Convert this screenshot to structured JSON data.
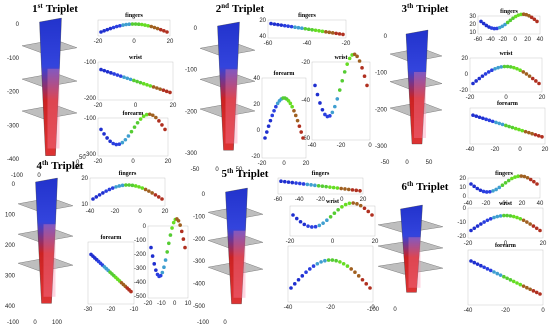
{
  "panels": [
    {
      "title": {
        "number": "1",
        "suffix": "st",
        "word": "Triplet"
      },
      "arm": {
        "yticks": [
          "0",
          "-100",
          "-200",
          "-300",
          "-400"
        ],
        "xticks": [
          "-100",
          "0"
        ],
        "zticks": [
          "50",
          "0",
          "-50"
        ]
      },
      "plots": [
        {
          "label": "fingers",
          "xticks": [
            "-20",
            "0",
            "20"
          ],
          "yticks": []
        },
        {
          "label": "wrist",
          "xticks": [
            "-20",
            "0",
            "20"
          ],
          "yticks": [
            "-100",
            "-200"
          ]
        },
        {
          "label": "forearm",
          "xticks": [
            "-20",
            "0",
            "20"
          ],
          "yticks": [
            "-100",
            "-300"
          ]
        }
      ]
    },
    {
      "title": {
        "number": "2",
        "suffix": "nd",
        "word": "Triplet"
      },
      "arm": {
        "yticks": [
          "0",
          "-100",
          "-200",
          "-300"
        ],
        "xticks": [
          "-50",
          "0",
          "50"
        ],
        "zticks": []
      },
      "plots": [
        {
          "label": "fingers",
          "xticks": [
            "-60",
            "-40",
            "-20"
          ],
          "yticks": [
            "20",
            "40"
          ]
        },
        {
          "label": "wrist",
          "xticks": [
            "-40",
            "-20",
            "0"
          ],
          "yticks": [
            "-20",
            "-40",
            "-60"
          ]
        },
        {
          "label": "forearm",
          "xticks": [
            "-20",
            "0",
            "20"
          ],
          "yticks": [
            "40",
            "20",
            "0",
            "-20"
          ]
        }
      ]
    },
    {
      "title": {
        "number": "3",
        "suffix": "th",
        "word": "Triplet"
      },
      "arm": {
        "yticks": [
          "0",
          "-100",
          "-200",
          "-300"
        ],
        "xticks": [
          "-50",
          "0",
          "50"
        ],
        "zticks": []
      },
      "plots": [
        {
          "label": "fingers",
          "xticks": [
            "-60",
            "-40",
            "-20",
            "0",
            "20",
            "40"
          ],
          "yticks": [
            "30",
            "20",
            "10"
          ]
        },
        {
          "label": "wrist",
          "xticks": [
            "-20",
            "0",
            "20"
          ],
          "yticks": [
            "20",
            "0",
            "-20"
          ]
        },
        {
          "label": "forearm",
          "xticks": [
            "-40",
            "-20",
            "0",
            "20"
          ],
          "yticks": []
        }
      ]
    },
    {
      "title": {
        "number": "4",
        "suffix": "th",
        "word": "Triplet"
      },
      "arm": {
        "yticks": [
          "0",
          "100",
          "200",
          "300",
          "400"
        ],
        "xticks": [
          "-100",
          "0",
          "100"
        ],
        "zticks": []
      },
      "plots": [
        {
          "label": "fingers",
          "xticks": [
            "-40",
            "-20",
            "0",
            "20"
          ],
          "yticks": [
            "20",
            "10"
          ]
        },
        {
          "label": "forearm",
          "xticks": [
            "-30",
            "-20",
            "-10"
          ],
          "yticks": []
        },
        {
          "xticks": [
            "-20",
            "-10",
            "0",
            "10"
          ],
          "yticks": [
            "0",
            "-100",
            "-200",
            "-300",
            "-400",
            "-500"
          ]
        }
      ]
    },
    {
      "title": {
        "number": "5",
        "suffix": "th",
        "word": "Triplet"
      },
      "arm": {
        "yticks": [
          "0",
          "-100",
          "-200",
          "-300",
          "-400",
          "-500"
        ],
        "xticks": [
          "-100",
          "0"
        ],
        "zticks": []
      },
      "plots": [
        {
          "label": "fingers",
          "xticks": [
            "-60",
            "-40",
            "-20",
            "0",
            "20"
          ],
          "yticks": []
        },
        {
          "label": "wrist",
          "xticks": [
            "-20",
            "0",
            "20"
          ],
          "yticks": []
        },
        {
          "xticks": [
            "-40",
            "-20",
            "0"
          ],
          "yticks": []
        }
      ]
    },
    {
      "title": {
        "number": "6",
        "suffix": "th",
        "word": "Triplet"
      },
      "arm": {
        "yticks": [],
        "xticks": [
          "-100",
          "0"
        ],
        "zticks": []
      },
      "plots": [
        {
          "label": "fingers",
          "xticks": [
            "-40",
            "-20",
            "0",
            "20",
            "40"
          ],
          "yticks": [
            "20",
            "10",
            "0"
          ]
        },
        {
          "label": "wrist",
          "xticks": [
            "-20",
            "0",
            "20"
          ],
          "yticks": [
            "0",
            "-10",
            "-20"
          ]
        },
        {
          "label": "forearm",
          "xticks": [
            "-40",
            "-20",
            "0"
          ],
          "yticks": []
        }
      ]
    }
  ]
}
